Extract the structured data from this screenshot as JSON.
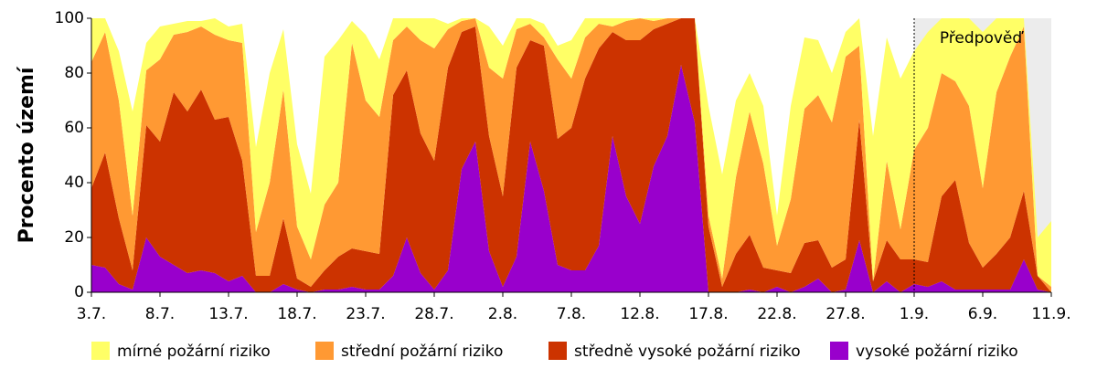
{
  "chart_data": {
    "type": "stacked-area",
    "ylabel": "Procento území",
    "categories": [
      "3.7.",
      null,
      null,
      null,
      null,
      "8.7.",
      null,
      null,
      null,
      null,
      "13.7.",
      null,
      null,
      null,
      null,
      "18.7.",
      null,
      null,
      null,
      null,
      "23.7.",
      null,
      null,
      null,
      null,
      "28.7.",
      null,
      null,
      null,
      null,
      "2.8.",
      null,
      null,
      null,
      null,
      "7.8.",
      null,
      null,
      null,
      null,
      "12.8.",
      null,
      null,
      null,
      null,
      "17.8.",
      null,
      null,
      null,
      null,
      "22.8.",
      null,
      null,
      null,
      null,
      "27.8.",
      null,
      null,
      null,
      null,
      "1.9.",
      null,
      null,
      null,
      null,
      "6.9.",
      null,
      null,
      null,
      null,
      "11.9."
    ],
    "series": [
      {
        "name": "mírné požární riziko",
        "color": "#ffff66",
        "values": [
          16,
          5,
          18,
          38,
          10,
          12,
          4,
          4,
          2,
          6,
          5,
          7,
          31,
          40,
          22,
          30,
          24,
          54,
          52,
          8,
          24,
          21,
          8,
          3,
          8,
          11,
          2,
          1,
          0,
          15,
          12,
          4,
          2,
          5,
          5,
          14,
          7,
          2,
          3,
          1,
          0,
          1,
          0,
          0,
          0,
          40,
          38,
          28,
          14,
          21,
          11,
          34,
          26,
          20,
          18,
          9,
          10,
          53,
          45,
          55,
          36,
          35,
          20,
          23,
          32,
          57,
          27,
          14,
          3,
          14,
          24
        ]
      },
      {
        "name": "střední požární riziko",
        "color": "#ff9933",
        "values": [
          46,
          44,
          43,
          20,
          20,
          30,
          21,
          29,
          23,
          31,
          28,
          43,
          16,
          34,
          47,
          19,
          10,
          24,
          27,
          75,
          55,
          50,
          20,
          16,
          34,
          41,
          14,
          4,
          3,
          25,
          43,
          14,
          6,
          3,
          29,
          18,
          15,
          9,
          2,
          7,
          8,
          3,
          2,
          0,
          0,
          4,
          3,
          28,
          45,
          38,
          9,
          27,
          49,
          53,
          53,
          74,
          27,
          0,
          29,
          11,
          40,
          49,
          45,
          36,
          50,
          29,
          59,
          66,
          60,
          0,
          2
        ]
      },
      {
        "name": "středně vysoké požární riziko",
        "color": "#cc3300",
        "values": [
          28,
          42,
          24,
          7,
          41,
          42,
          63,
          59,
          66,
          56,
          60,
          42,
          6,
          6,
          24,
          4,
          2,
          7,
          12,
          14,
          14,
          13,
          66,
          61,
          51,
          47,
          74,
          50,
          42,
          42,
          33,
          69,
          37,
          53,
          46,
          52,
          70,
          72,
          38,
          57,
          67,
          50,
          41,
          17,
          38,
          24,
          2,
          14,
          20,
          9,
          6,
          7,
          16,
          14,
          9,
          11,
          44,
          4,
          15,
          12,
          9,
          9,
          31,
          40,
          17,
          8,
          13,
          19,
          25,
          5,
          0
        ]
      },
      {
        "name": "vysoké požární riziko",
        "color": "#9900cc",
        "values": [
          10,
          9,
          3,
          1,
          20,
          13,
          10,
          7,
          8,
          7,
          4,
          6,
          0,
          0,
          3,
          1,
          0,
          1,
          1,
          2,
          1,
          1,
          6,
          20,
          7,
          1,
          8,
          45,
          55,
          15,
          2,
          13,
          55,
          37,
          10,
          8,
          8,
          17,
          57,
          35,
          25,
          46,
          57,
          83,
          62,
          0,
          0,
          0,
          1,
          0,
          2,
          0,
          2,
          5,
          0,
          1,
          19,
          0,
          4,
          0,
          3,
          2,
          4,
          1,
          1,
          1,
          1,
          1,
          12,
          1,
          0
        ]
      }
    ],
    "ylim": [
      0,
      100
    ],
    "yticks": [
      0,
      20,
      40,
      60,
      80,
      100
    ],
    "annotation": {
      "text": "Předpověď",
      "from": "1.9."
    },
    "legend": "bottom"
  }
}
